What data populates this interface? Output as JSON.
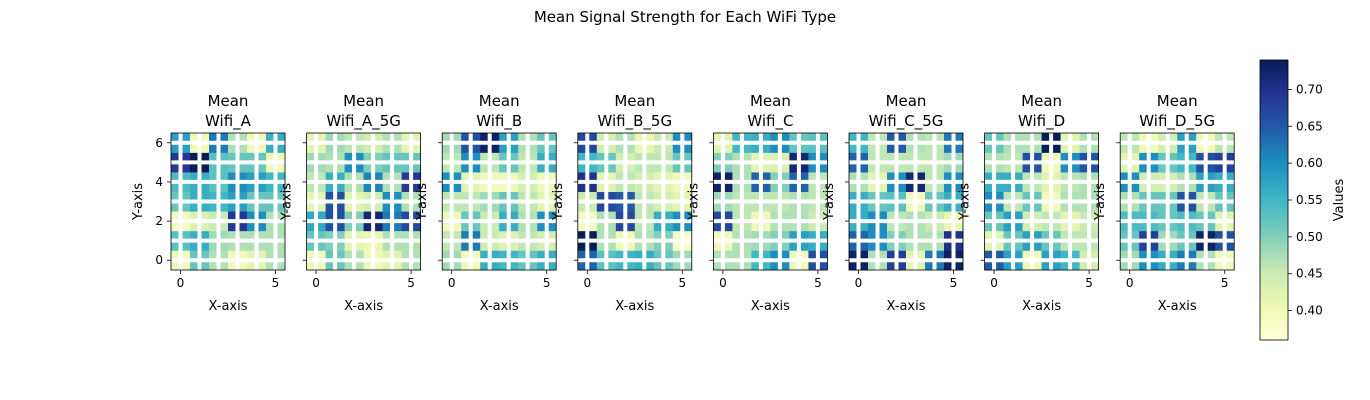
{
  "figure": {
    "suptitle": "Mean Signal Strength for Each WiFi Type"
  },
  "colorbar": {
    "label": "Values",
    "ticks": [
      "0.40",
      "0.45",
      "0.50",
      "0.55",
      "0.60",
      "0.65",
      "0.70"
    ],
    "range": [
      0.36,
      0.74
    ],
    "colormap": "YlGnBu"
  },
  "chart_data": {
    "type": "heatmap",
    "xlabel": "X-axis",
    "ylabel": "Y-axis",
    "x_ticks": [
      "0",
      "5"
    ],
    "y_ticks": [
      "0",
      "2",
      "4",
      "6"
    ],
    "grid": true,
    "colorbar_range": [
      0.36,
      0.74
    ],
    "panels": [
      {
        "title": "Mean\nWifi_A",
        "matrix": [
          [
            0.4,
            0.52,
            0.47,
            0.4,
            0.42,
            0.47
          ],
          [
            0.53,
            0.56,
            0.48,
            0.47,
            0.47,
            0.47
          ],
          [
            0.39,
            0.43,
            0.45,
            0.69,
            0.6,
            0.47
          ],
          [
            0.52,
            0.56,
            0.55,
            0.58,
            0.52,
            0.52
          ],
          [
            0.54,
            0.56,
            0.53,
            0.6,
            0.58,
            0.55
          ],
          [
            0.69,
            0.74,
            0.53,
            0.52,
            0.52,
            0.4
          ],
          [
            0.58,
            0.4,
            0.62,
            0.47,
            0.4,
            0.56
          ]
        ]
      },
      {
        "title": "Mean\nWifi_A_5G",
        "matrix": [
          [
            0.4,
            0.52,
            0.47,
            0.4,
            0.42,
            0.47
          ],
          [
            0.52,
            0.5,
            0.42,
            0.41,
            0.47,
            0.47
          ],
          [
            0.57,
            0.66,
            0.5,
            0.72,
            0.62,
            0.67
          ],
          [
            0.42,
            0.66,
            0.42,
            0.44,
            0.6,
            0.47
          ],
          [
            0.46,
            0.56,
            0.47,
            0.61,
            0.47,
            0.69
          ],
          [
            0.48,
            0.47,
            0.6,
            0.5,
            0.52,
            0.52
          ],
          [
            0.42,
            0.48,
            0.46,
            0.44,
            0.47,
            0.42
          ]
        ]
      },
      {
        "title": "Mean\nWifi_B",
        "matrix": [
          [
            0.48,
            0.4,
            0.56,
            0.55,
            0.52,
            0.56
          ],
          [
            0.46,
            0.62,
            0.45,
            0.43,
            0.46,
            0.44
          ],
          [
            0.4,
            0.52,
            0.45,
            0.56,
            0.47,
            0.6
          ],
          [
            0.46,
            0.46,
            0.48,
            0.52,
            0.46,
            0.42
          ],
          [
            0.6,
            0.42,
            0.4,
            0.4,
            0.44,
            0.4
          ],
          [
            0.46,
            0.6,
            0.46,
            0.52,
            0.46,
            0.56
          ],
          [
            0.48,
            0.66,
            0.73,
            0.58,
            0.47,
            0.52
          ]
        ]
      },
      {
        "title": "Mean\nWifi_B_5G",
        "matrix": [
          [
            0.64,
            0.53,
            0.55,
            0.56,
            0.52,
            0.48
          ],
          [
            0.74,
            0.47,
            0.4,
            0.47,
            0.5,
            0.38
          ],
          [
            0.39,
            0.47,
            0.67,
            0.46,
            0.56,
            0.6
          ],
          [
            0.45,
            0.67,
            0.65,
            0.46,
            0.44,
            0.42
          ],
          [
            0.7,
            0.42,
            0.46,
            0.44,
            0.42,
            0.4
          ],
          [
            0.55,
            0.52,
            0.44,
            0.46,
            0.46,
            0.52
          ],
          [
            0.67,
            0.44,
            0.47,
            0.41,
            0.45,
            0.6
          ]
        ]
      },
      {
        "title": "Mean\nWifi_C",
        "matrix": [
          [
            0.47,
            0.47,
            0.55,
            0.6,
            0.4,
            0.66
          ],
          [
            0.4,
            0.47,
            0.48,
            0.5,
            0.58,
            0.56
          ],
          [
            0.67,
            0.46,
            0.4,
            0.47,
            0.47,
            0.45
          ],
          [
            0.48,
            0.46,
            0.46,
            0.46,
            0.47,
            0.46
          ],
          [
            0.73,
            0.47,
            0.64,
            0.5,
            0.64,
            0.46
          ],
          [
            0.5,
            0.47,
            0.42,
            0.43,
            0.72,
            0.6
          ],
          [
            0.42,
            0.55,
            0.56,
            0.6,
            0.52,
            0.53
          ]
        ]
      },
      {
        "title": "Mean\nWifi_C_5G",
        "matrix": [
          [
            0.73,
            0.47,
            0.68,
            0.42,
            0.62,
            0.73
          ],
          [
            0.64,
            0.6,
            0.5,
            0.47,
            0.47,
            0.7
          ],
          [
            0.56,
            0.6,
            0.46,
            0.47,
            0.45,
            0.41
          ],
          [
            0.56,
            0.52,
            0.53,
            0.4,
            0.52,
            0.56
          ],
          [
            0.47,
            0.42,
            0.6,
            0.72,
            0.46,
            0.6
          ],
          [
            0.64,
            0.46,
            0.46,
            0.46,
            0.46,
            0.48
          ],
          [
            0.55,
            0.46,
            0.65,
            0.47,
            0.46,
            0.62
          ]
        ]
      },
      {
        "title": "Mean\nWifi_D",
        "matrix": [
          [
            0.65,
            0.58,
            0.4,
            0.58,
            0.55,
            0.44
          ],
          [
            0.42,
            0.52,
            0.58,
            0.52,
            0.46,
            0.46
          ],
          [
            0.52,
            0.58,
            0.44,
            0.46,
            0.42,
            0.45
          ],
          [
            0.6,
            0.46,
            0.52,
            0.4,
            0.47,
            0.47
          ],
          [
            0.56,
            0.56,
            0.46,
            0.42,
            0.46,
            0.47
          ],
          [
            0.47,
            0.46,
            0.66,
            0.4,
            0.6,
            0.66
          ],
          [
            0.52,
            0.47,
            0.47,
            0.74,
            0.42,
            0.47
          ]
        ]
      },
      {
        "title": "Mean\nWifi_D_5G",
        "matrix": [
          [
            0.48,
            0.6,
            0.56,
            0.62,
            0.47,
            0.4
          ],
          [
            0.52,
            0.68,
            0.48,
            0.52,
            0.73,
            0.66
          ],
          [
            0.54,
            0.54,
            0.52,
            0.54,
            0.52,
            0.42
          ],
          [
            0.47,
            0.52,
            0.52,
            0.66,
            0.46,
            0.52
          ],
          [
            0.6,
            0.44,
            0.44,
            0.47,
            0.58,
            0.56
          ],
          [
            0.42,
            0.6,
            0.52,
            0.55,
            0.66,
            0.68
          ],
          [
            0.46,
            0.4,
            0.44,
            0.58,
            0.4,
            0.46
          ]
        ]
      }
    ]
  }
}
